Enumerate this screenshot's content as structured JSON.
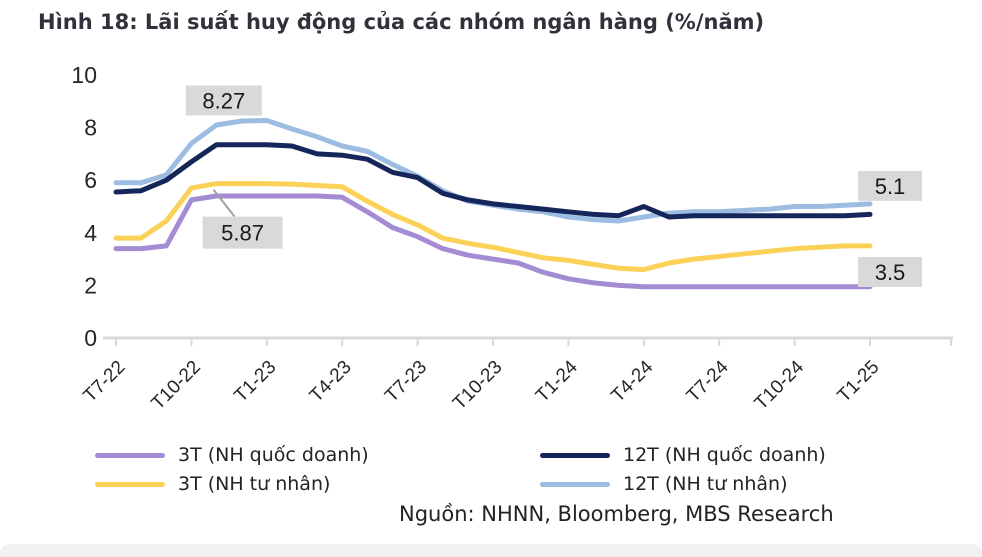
{
  "title": "Hình 18: Lãi suất huy động của các nhóm ngân hàng (%/năm)",
  "source": {
    "prefix": "Nguồn:",
    "text": "NHNN, Bloomberg, MBS Research"
  },
  "colors": {
    "axis": "#d9d9d9",
    "tick_text": "#262626",
    "annotation_bg": "#d9d9d9",
    "annotation_text": "#1a1a1a",
    "leader_line": "#a0a0a0"
  },
  "chart_data": {
    "type": "line",
    "title": "Lãi suất huy động của các nhóm ngân hàng (%/năm)",
    "xlabel": "",
    "ylabel": "%/năm",
    "ylim": [
      0,
      10
    ],
    "yticks": [
      0,
      2,
      4,
      6,
      8,
      10
    ],
    "grid": false,
    "legend_position": "bottom",
    "months": [
      "T7-22",
      "T8-22",
      "T9-22",
      "T10-22",
      "T11-22",
      "T12-22",
      "T1-23",
      "T2-23",
      "T3-23",
      "T4-23",
      "T5-23",
      "T6-23",
      "T7-23",
      "T8-23",
      "T9-23",
      "T10-23",
      "T11-23",
      "T12-23",
      "T1-24",
      "T2-24",
      "T3-24",
      "T4-24",
      "T5-24",
      "T6-24",
      "T7-24",
      "T8-24",
      "T9-24",
      "T10-24",
      "T11-24",
      "T12-24",
      "T1-25"
    ],
    "x_tick_labels": [
      "T7-22",
      "T10-22",
      "T1-23",
      "T4-23",
      "T7-23",
      "T10-23",
      "T1-24",
      "T4-24",
      "T7-24",
      "T10-24",
      "T1-25"
    ],
    "series": [
      {
        "name": "3T (NH quốc doanh)",
        "color": "#a48cd5",
        "values": [
          3.4,
          3.4,
          3.5,
          5.25,
          5.4,
          5.4,
          5.4,
          5.4,
          5.4,
          5.35,
          4.8,
          4.2,
          3.85,
          3.4,
          3.15,
          3.0,
          2.85,
          2.5,
          2.25,
          2.1,
          2.0,
          1.95,
          1.95,
          1.95,
          1.95,
          1.95,
          1.95,
          1.95,
          1.95,
          1.95,
          1.95
        ]
      },
      {
        "name": "3T (NH tư nhân)",
        "color": "#fcd157",
        "values": [
          3.8,
          3.8,
          4.45,
          5.7,
          5.87,
          5.87,
          5.87,
          5.85,
          5.8,
          5.75,
          5.2,
          4.7,
          4.3,
          3.8,
          3.6,
          3.45,
          3.25,
          3.05,
          2.95,
          2.8,
          2.65,
          2.6,
          2.85,
          3.0,
          3.1,
          3.2,
          3.3,
          3.4,
          3.45,
          3.5,
          3.5
        ]
      },
      {
        "name": "12T (NH quốc doanh)",
        "color": "#15275a",
        "values": [
          5.55,
          5.6,
          6.0,
          6.7,
          7.35,
          7.35,
          7.35,
          7.3,
          7.0,
          6.95,
          6.8,
          6.3,
          6.1,
          5.5,
          5.25,
          5.1,
          5.0,
          4.9,
          4.8,
          4.7,
          4.65,
          5.0,
          4.6,
          4.65,
          4.65,
          4.65,
          4.65,
          4.65,
          4.65,
          4.65,
          4.7
        ]
      },
      {
        "name": "12T (NH tư nhân)",
        "color": "#9cbce2",
        "values": [
          5.9,
          5.9,
          6.2,
          7.4,
          8.1,
          8.25,
          8.27,
          7.95,
          7.65,
          7.3,
          7.1,
          6.6,
          6.15,
          5.6,
          5.2,
          5.05,
          4.9,
          4.8,
          4.6,
          4.5,
          4.45,
          4.6,
          4.75,
          4.8,
          4.8,
          4.85,
          4.9,
          5.0,
          5.0,
          5.05,
          5.1
        ]
      }
    ],
    "annotations": [
      {
        "text": "8.27",
        "series_index": 3,
        "month_index": 6
      },
      {
        "text": "5.87",
        "series_index": 1,
        "month_index": 4
      },
      {
        "text": "5.1",
        "series_index": 3,
        "month_index": 30
      },
      {
        "text": "3.5",
        "series_index": 1,
        "month_index": 30
      }
    ]
  }
}
